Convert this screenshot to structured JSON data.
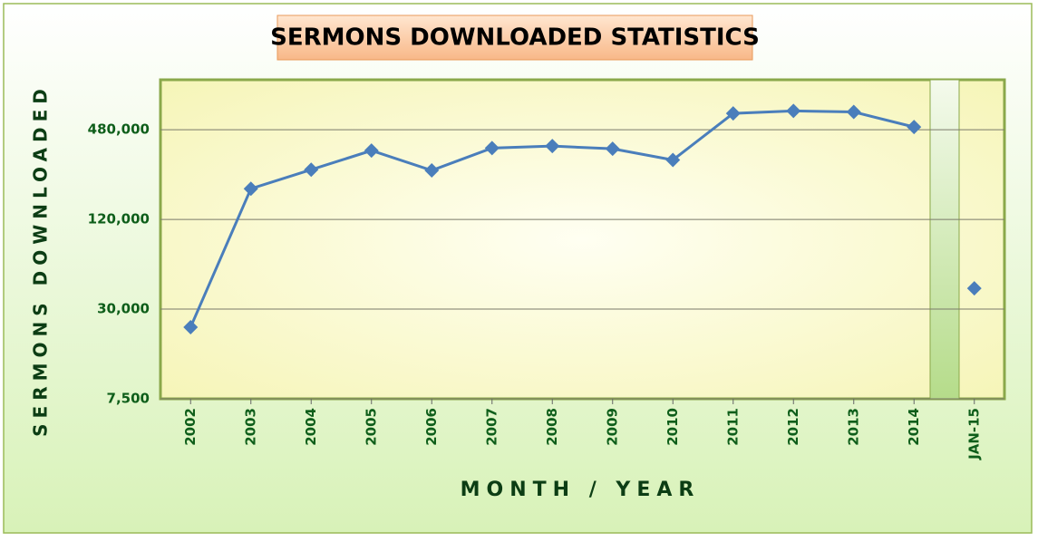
{
  "chart_data": {
    "type": "line",
    "title": "SERMONS DOWNLOADED STATISTICS",
    "x_label": "MONTH / YEAR",
    "y_label": "SERMONS DOWNLOADED",
    "categories": [
      "2002",
      "2003",
      "2004",
      "2005",
      "2006",
      "2007",
      "2008",
      "2009",
      "2010",
      "2011",
      "2012",
      "2013",
      "2014",
      "JAN-15"
    ],
    "series": [
      {
        "color": "#4a7ebb",
        "values": [
          22700,
          193000,
          259000,
          348000,
          256000,
          362000,
          373000,
          358000,
          301000,
          618000,
          643000,
          632000,
          501000,
          null
        ]
      },
      {
        "color": "#4a7ebb",
        "values": [
          null,
          null,
          null,
          null,
          null,
          null,
          null,
          null,
          null,
          null,
          null,
          null,
          null,
          41400
        ]
      }
    ],
    "log_scale": true,
    "ylim": [
      7500,
      1040000
    ],
    "yticks": [
      {
        "value": 7500,
        "label": "7,500"
      },
      {
        "value": 30000,
        "label": "30,000"
      },
      {
        "value": 120000,
        "label": "120,000"
      },
      {
        "value": 480000,
        "label": "480,000"
      }
    ],
    "grid": true
  }
}
